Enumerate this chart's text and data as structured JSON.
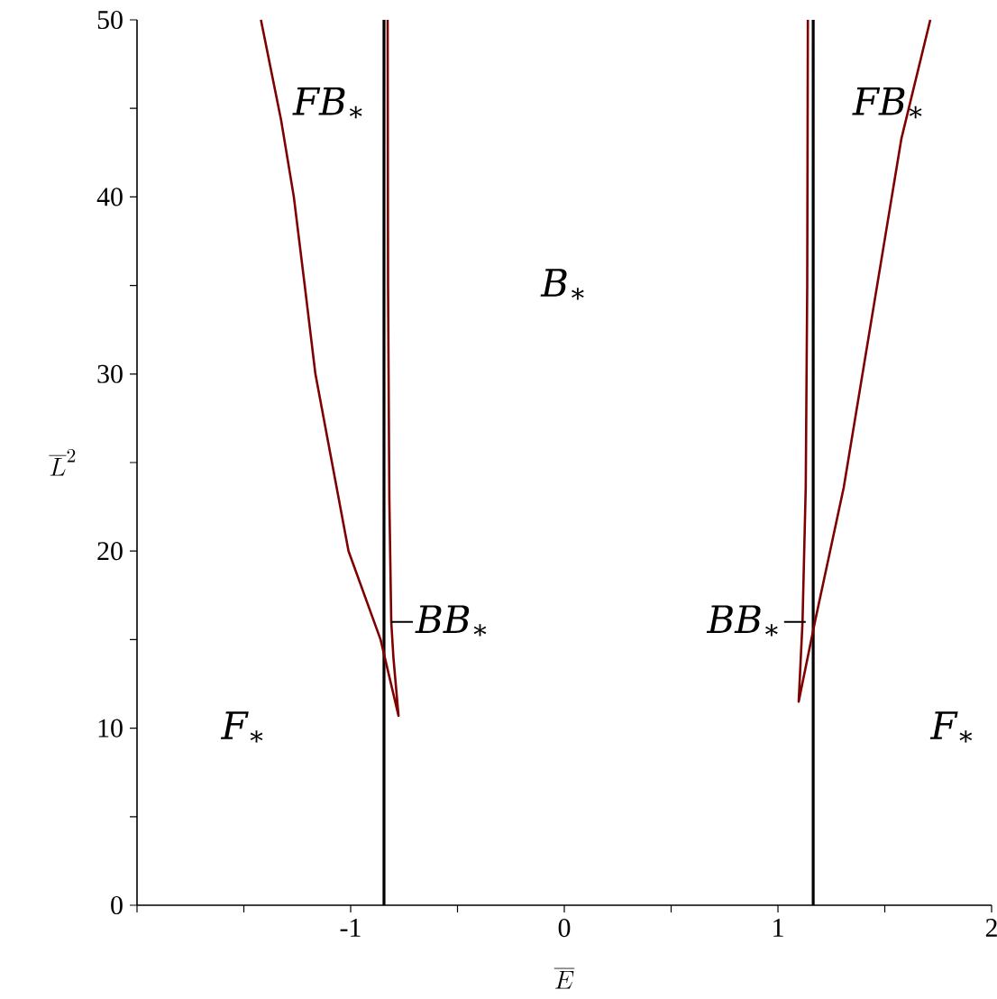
{
  "chart_data": {
    "type": "line",
    "xlabel": "\\overline{E}",
    "ylabel": "\\overline{L}^2",
    "xlim": [
      -2,
      2
    ],
    "ylim": [
      0,
      50
    ],
    "xticks": [
      {
        "value": -2,
        "label": null
      },
      {
        "value": -1.5,
        "label": null
      },
      -1,
      {
        "value": -0.5,
        "label": null
      },
      0,
      {
        "value": 0.5,
        "label": null
      },
      1,
      {
        "value": 1.5,
        "label": null
      },
      2
    ],
    "yticks": [
      0,
      {
        "value": 5,
        "label": null
      },
      10,
      {
        "value": 15,
        "label": null
      },
      20,
      {
        "value": 25,
        "label": null
      },
      30,
      {
        "value": 35,
        "label": null
      },
      40,
      {
        "value": 45,
        "label": null
      },
      50
    ],
    "series": [
      {
        "color": "#7f0000",
        "x": [
          -1.42,
          -1.325,
          -1.266,
          -1.215,
          -1.165,
          -1.01,
          -0.86,
          -0.776,
          -0.8,
          -0.81,
          -0.819,
          -0.825,
          -0.827
        ],
        "values": [
          50,
          44.3,
          40,
          35,
          30,
          20,
          15,
          10.7,
          14,
          16,
          23,
          35,
          50
        ]
      },
      {
        "color": "#7f0000",
        "x": [
          1.14,
          1.137,
          1.13,
          1.115,
          1.097,
          1.173,
          1.308,
          1.578,
          1.713
        ],
        "values": [
          50,
          35,
          23.6,
          16,
          11.5,
          16,
          23.6,
          43.3,
          50
        ]
      }
    ],
    "ref_lines": [
      {
        "axis": "x",
        "value": -0.844,
        "color": "#000000"
      },
      {
        "axis": "x",
        "value": 1.165,
        "color": "#000000"
      }
    ],
    "annotations": [
      "FB$_{∗}$",
      "FB$_{∗}$",
      "B$_{∗}$",
      {
        "text": "BB$_{∗}$",
        "x": -0.81,
        "y": 16
      },
      {
        "text": "BB$_{∗}$",
        "x": 1.13,
        "y": 16
      },
      "F$_{∗}$",
      "F$_{∗}$"
    ],
    "grid": false,
    "marker": "none",
    "line_style": "solid"
  }
}
